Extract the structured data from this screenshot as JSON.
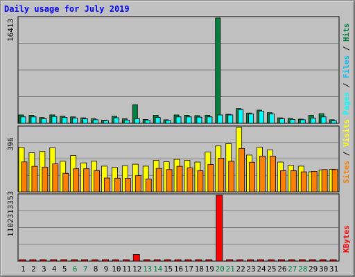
{
  "title": "Daily usage for July 2019",
  "colors": {
    "hits": "#008040",
    "files": "#00c0ff",
    "pages": "#00ffff",
    "visits": "#ffff00",
    "sites": "#ff8000",
    "kbytes": "#ff0000",
    "weekday_label": "#000000",
    "weekend_label": "#008040",
    "grid": "#808080"
  },
  "chart_data": [
    {
      "type": "bar",
      "panel": "top",
      "categories": [
        "1",
        "2",
        "3",
        "4",
        "5",
        "6",
        "7",
        "8",
        "9",
        "10",
        "11",
        "12",
        "13",
        "14",
        "15",
        "16",
        "17",
        "18",
        "19",
        "20",
        "21",
        "22",
        "23",
        "24",
        "25",
        "26",
        "27",
        "28",
        "29",
        "30",
        "31"
      ],
      "max_label": "16413",
      "ylim": [
        0,
        16413
      ],
      "legend": [
        "Pages",
        "Files",
        "Hits"
      ],
      "legend_separator": " / ",
      "series": [
        {
          "name": "Hits",
          "values": [
            1300,
            1250,
            900,
            1300,
            1100,
            1000,
            850,
            700,
            500,
            1100,
            700,
            2900,
            600,
            1250,
            550,
            1300,
            1250,
            1200,
            1250,
            16413,
            1400,
            2300,
            1600,
            2050,
            1650,
            850,
            750,
            650,
            1250,
            1500,
            550
          ]
        },
        {
          "name": "Files",
          "values": [
            1000,
            1000,
            700,
            1050,
            900,
            800,
            700,
            550,
            400,
            850,
            500,
            700,
            500,
            900,
            450,
            1000,
            1000,
            950,
            1000,
            1300,
            1300,
            2150,
            1450,
            1900,
            1450,
            700,
            600,
            550,
            800,
            1000,
            400
          ]
        },
        {
          "name": "Pages",
          "values": [
            1000,
            1000,
            700,
            1050,
            900,
            800,
            700,
            550,
            400,
            850,
            500,
            700,
            500,
            900,
            450,
            1000,
            1000,
            950,
            1000,
            1300,
            1300,
            2150,
            1450,
            1900,
            1450,
            700,
            600,
            550,
            800,
            1000,
            400
          ]
        }
      ]
    },
    {
      "type": "bar",
      "panel": "middle",
      "categories": [
        "1",
        "2",
        "3",
        "4",
        "5",
        "6",
        "7",
        "8",
        "9",
        "10",
        "11",
        "12",
        "13",
        "14",
        "15",
        "16",
        "17",
        "18",
        "19",
        "20",
        "21",
        "22",
        "23",
        "24",
        "25",
        "26",
        "27",
        "28",
        "29",
        "30",
        "31"
      ],
      "max_label": "396",
      "ylim": [
        0,
        396
      ],
      "legend": [
        "Sites",
        "Visits"
      ],
      "legend_separator": " / ",
      "series": [
        {
          "name": "Visits",
          "values": [
            273,
            240,
            248,
            271,
            188,
            224,
            178,
            188,
            158,
            150,
            160,
            170,
            158,
            193,
            185,
            200,
            193,
            183,
            245,
            282,
            296,
            396,
            226,
            274,
            258,
            183,
            164,
            158,
            123,
            134,
            139
          ]
        },
        {
          "name": "Sites",
          "values": [
            184,
            157,
            152,
            172,
            114,
            142,
            142,
            131,
            85,
            84,
            83,
            100,
            79,
            144,
            137,
            157,
            148,
            130,
            168,
            207,
            188,
            267,
            182,
            220,
            220,
            130,
            130,
            123,
            126,
            137,
            137
          ]
        }
      ]
    },
    {
      "type": "bar",
      "panel": "bottom",
      "categories": [
        "1",
        "2",
        "3",
        "4",
        "5",
        "6",
        "7",
        "8",
        "9",
        "10",
        "11",
        "12",
        "13",
        "14",
        "15",
        "16",
        "17",
        "18",
        "19",
        "20",
        "21",
        "22",
        "23",
        "24",
        "25",
        "26",
        "27",
        "28",
        "29",
        "30",
        "31"
      ],
      "max_label": "1102313353",
      "ylim": [
        0,
        1102313353
      ],
      "legend": [
        "KBytes"
      ],
      "series": [
        {
          "name": "KBytes",
          "values": [
            15000000,
            15000000,
            22000000,
            15000000,
            15000000,
            15000000,
            15000000,
            15000000,
            22000000,
            15000000,
            15000000,
            110000000,
            15000000,
            15000000,
            15000000,
            15000000,
            22000000,
            15000000,
            15000000,
            1102313353,
            15000000,
            15000000,
            15000000,
            15000000,
            15000000,
            15000000,
            15000000,
            15000000,
            22000000,
            15000000,
            15000000
          ]
        }
      ]
    }
  ],
  "weekend_days": [
    "6",
    "7",
    "13",
    "14",
    "20",
    "21",
    "27",
    "28"
  ]
}
